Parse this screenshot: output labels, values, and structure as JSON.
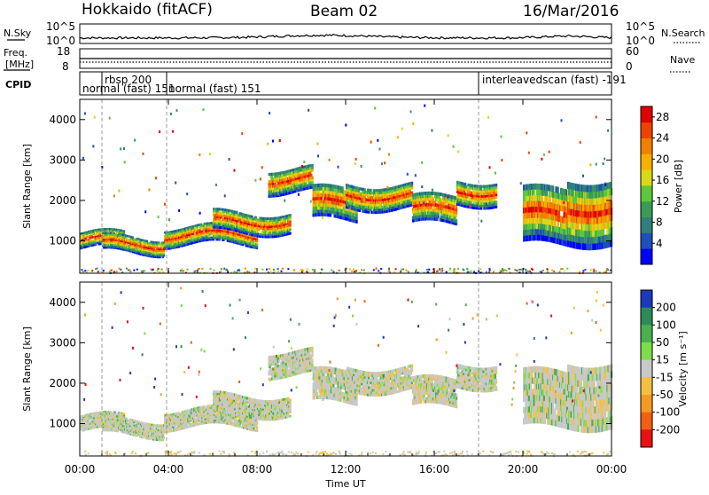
{
  "header": {
    "station": "Hokkaido (fitACF)",
    "beam": "Beam 02",
    "date": "16/Mar/2016"
  },
  "noise_panel": {
    "left_label": "N.Sky",
    "right_label": "N.Search",
    "ticks": [
      "10^5",
      "10^0"
    ]
  },
  "freq_panel": {
    "left_label_1": "Freq.",
    "left_label_2": "[MHz]",
    "left_ticks": [
      "18",
      "8"
    ],
    "right_label": "Nave",
    "right_ticks": [
      "60",
      "0"
    ]
  },
  "cpid_panel": {
    "label": "CPID",
    "entries": [
      {
        "text": "normal (fast) 151",
        "start_hour": 0.0
      },
      {
        "text": "rbsp 200",
        "start_hour": 1.0
      },
      {
        "text": "normal (fast) 151",
        "start_hour": 3.92
      },
      {
        "text": "interleavedscan (fast) -191",
        "start_hour": 18.0
      }
    ]
  },
  "chart_data": [
    {
      "type": "heatmap",
      "name": "power",
      "ylabel": "Slant Range [km]",
      "ylim": [
        200,
        4500
      ],
      "yticks": [
        1000,
        2000,
        3000,
        4000
      ],
      "xlim": [
        0,
        24
      ],
      "colorbar": {
        "label": "Power [dB]",
        "range": [
          0,
          30
        ],
        "ticks": [
          4,
          8,
          12,
          16,
          20,
          24,
          28
        ],
        "colors": [
          "#0000ff",
          "#1f4fb8",
          "#2f7f7a",
          "#3b9a55",
          "#5cc83a",
          "#d8d81a",
          "#f5b000",
          "#f08000",
          "#ee4400",
          "#e00000"
        ]
      }
    },
    {
      "type": "heatmap",
      "name": "velocity",
      "ylabel": "Slant Range [km]",
      "ylim": [
        200,
        4500
      ],
      "yticks": [
        1000,
        2000,
        3000,
        4000
      ],
      "xlim": [
        0,
        24
      ],
      "colorbar": {
        "label": "Velocity [m s⁻¹]",
        "ticks": [
          "200",
          "100",
          "50",
          "15",
          "-15",
          "-50",
          "-100",
          "-200"
        ],
        "colors": [
          "#1c39bb",
          "#2e8b57",
          "#4caf50",
          "#7fdc4a",
          "#c8c8c8",
          "#f5c040",
          "#f59a20",
          "#f06010",
          "#e81010"
        ]
      }
    }
  ],
  "x_axis": {
    "label": "Time UT",
    "ticks": [
      "00:00",
      "04:00",
      "08:00",
      "12:00",
      "16:00",
      "20:00",
      "00:00"
    ]
  },
  "echo_bands": [
    {
      "h0": 0.0,
      "h1": 2.0,
      "r0": 800,
      "r1": 1200
    },
    {
      "h0": 1.0,
      "h1": 3.8,
      "r0": 700,
      "r1": 1100
    },
    {
      "h0": 3.8,
      "h1": 8.0,
      "r0": 900,
      "r1": 1350
    },
    {
      "h0": 6.0,
      "h1": 9.5,
      "r0": 1200,
      "r1": 1700
    },
    {
      "h0": 8.5,
      "h1": 10.5,
      "r0": 2200,
      "r1": 2800
    },
    {
      "h0": 10.5,
      "h1": 12.5,
      "r0": 1500,
      "r1": 2300
    },
    {
      "h0": 12.0,
      "h1": 15.0,
      "r0": 1800,
      "r1": 2400
    },
    {
      "h0": 15.0,
      "h1": 17.0,
      "r0": 1400,
      "r1": 2100
    },
    {
      "h0": 17.0,
      "h1": 18.8,
      "r0": 1900,
      "r1": 2500
    },
    {
      "h0": 20.0,
      "h1": 22.0,
      "r0": 900,
      "r1": 2300
    },
    {
      "h0": 22.0,
      "h1": 24.0,
      "r0": 900,
      "r1": 2500
    }
  ]
}
